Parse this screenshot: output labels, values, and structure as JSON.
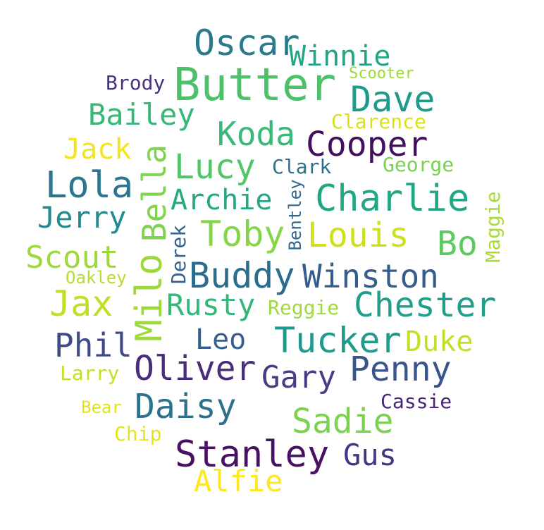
{
  "words": [
    {
      "text": "Butter",
      "color": "#4cc16a",
      "rot": false
    },
    {
      "text": "Oscar",
      "color": "#2a7a8c",
      "rot": false
    },
    {
      "text": "Winnie",
      "color": "#21a585",
      "rot": false
    },
    {
      "text": "Scooter",
      "color": "#9fd938",
      "rot": false
    },
    {
      "text": "Brody",
      "color": "#46327e",
      "rot": false
    },
    {
      "text": "Dave",
      "color": "#1f9a8a",
      "rot": false
    },
    {
      "text": "Bailey",
      "color": "#37b878",
      "rot": false
    },
    {
      "text": "Clarence",
      "color": "#d8e219",
      "rot": false
    },
    {
      "text": "Koda",
      "color": "#38b977",
      "rot": false
    },
    {
      "text": "Cooper",
      "color": "#440f5c",
      "rot": false
    },
    {
      "text": "Jack",
      "color": "#f1e51d",
      "rot": false
    },
    {
      "text": "Bella",
      "color": "#80d34f",
      "rot": true
    },
    {
      "text": "Lucy",
      "color": "#52c569",
      "rot": false
    },
    {
      "text": "Clark",
      "color": "#2e6f8e",
      "rot": false
    },
    {
      "text": "George",
      "color": "#7ad151",
      "rot": false
    },
    {
      "text": "Lola",
      "color": "#2b758e",
      "rot": false
    },
    {
      "text": "Archie",
      "color": "#26a784",
      "rot": false
    },
    {
      "text": "Bentley",
      "color": "#31688e",
      "rot": true
    },
    {
      "text": "Charlie",
      "color": "#22a785",
      "rot": false
    },
    {
      "text": "Maggie",
      "color": "#a8db34",
      "rot": true
    },
    {
      "text": "Jerry",
      "color": "#238a8d",
      "rot": false
    },
    {
      "text": "Toby",
      "color": "#86d549",
      "rot": false
    },
    {
      "text": "Louis",
      "color": "#cde11d",
      "rot": false
    },
    {
      "text": "Derek",
      "color": "#355f8d",
      "rot": true
    },
    {
      "text": "Bo",
      "color": "#5ec962",
      "rot": false
    },
    {
      "text": "Scout",
      "color": "#9dd93b",
      "rot": false
    },
    {
      "text": "Oakley",
      "color": "#b5de2b",
      "rot": false
    },
    {
      "text": "Buddy",
      "color": "#2c6d8e",
      "rot": false
    },
    {
      "text": "Winston",
      "color": "#365c8d",
      "rot": false
    },
    {
      "text": "Milo",
      "color": "#9dd93b",
      "rot": true
    },
    {
      "text": "Jax",
      "color": "#c0df25",
      "rot": false
    },
    {
      "text": "Rusty",
      "color": "#35b779",
      "rot": false
    },
    {
      "text": "Reggie",
      "color": "#9fda3a",
      "rot": false
    },
    {
      "text": "Chester",
      "color": "#1f9e89",
      "rot": false
    },
    {
      "text": "Phil",
      "color": "#3e4a89",
      "rot": false
    },
    {
      "text": "Leo",
      "color": "#365d8d",
      "rot": false
    },
    {
      "text": "Tucker",
      "color": "#1e9b8a",
      "rot": false
    },
    {
      "text": "Duke",
      "color": "#c2df23",
      "rot": false
    },
    {
      "text": "Oliver",
      "color": "#472d7b",
      "rot": false
    },
    {
      "text": "Gary",
      "color": "#433e85",
      "rot": false
    },
    {
      "text": "Penny",
      "color": "#3a548c",
      "rot": false
    },
    {
      "text": "Larry",
      "color": "#c5e021",
      "rot": false
    },
    {
      "text": "Daisy",
      "color": "#2d718e",
      "rot": false
    },
    {
      "text": "Sadie",
      "color": "#7cd250",
      "rot": false
    },
    {
      "text": "Cassie",
      "color": "#482576",
      "rot": false
    },
    {
      "text": "Bear",
      "color": "#e2e418",
      "rot": false
    },
    {
      "text": "Chip",
      "color": "#e5e419",
      "rot": false
    },
    {
      "text": "Stanley",
      "color": "#471164",
      "rot": false
    },
    {
      "text": "Gus",
      "color": "#453581",
      "rot": false
    },
    {
      "text": "Alfie",
      "color": "#fde725",
      "rot": false
    }
  ]
}
